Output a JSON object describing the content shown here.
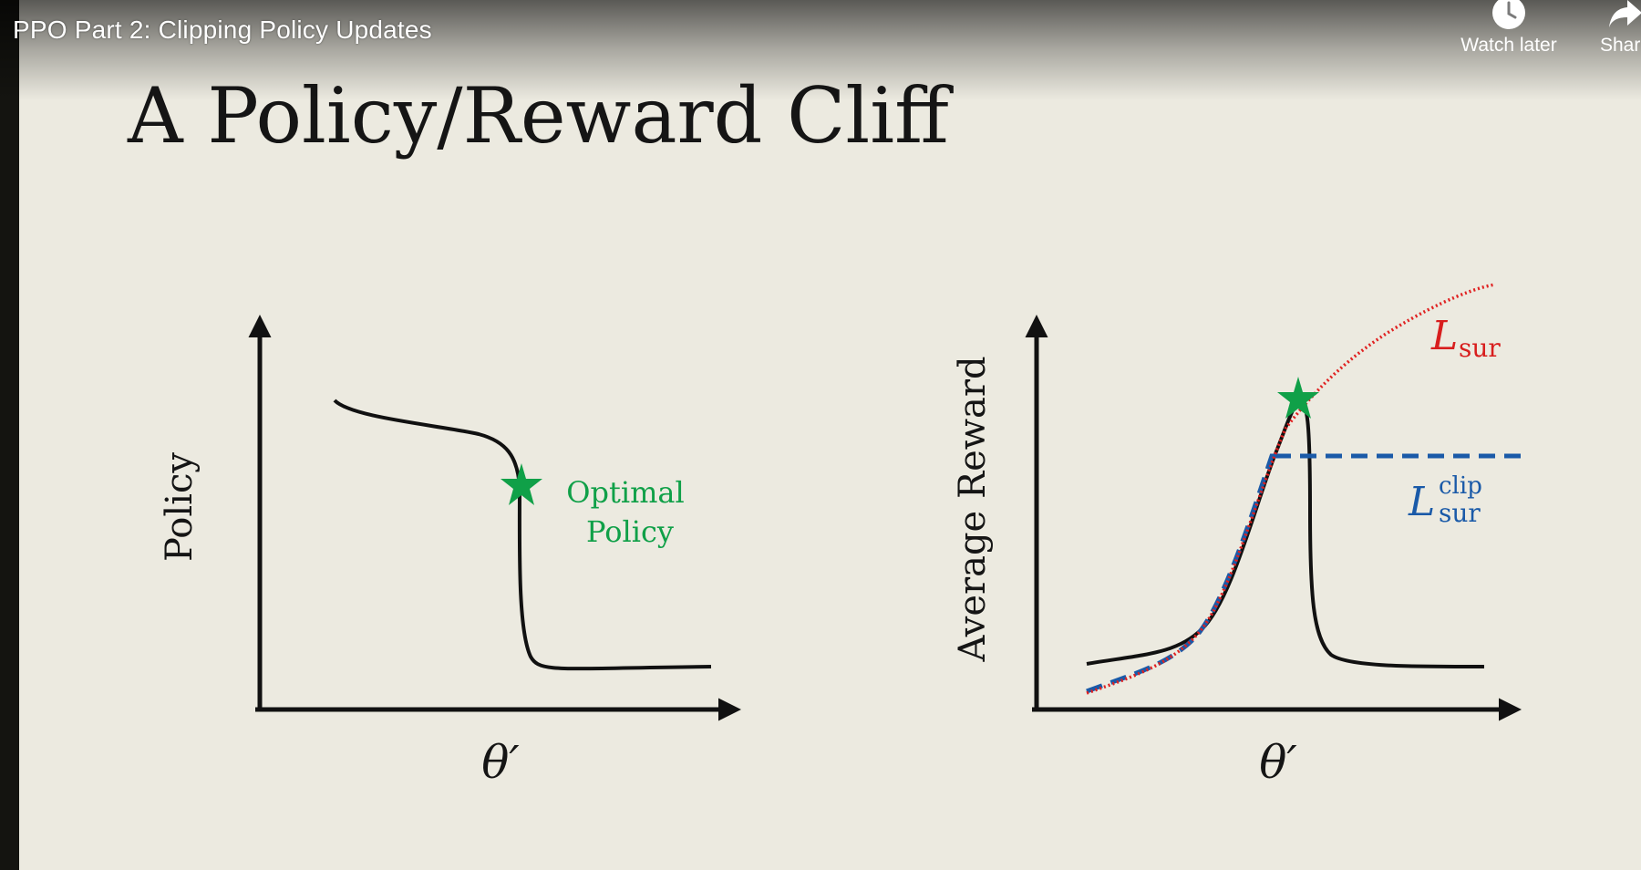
{
  "video": {
    "title": "PPO Part 2: Clipping Policy Updates",
    "actions": {
      "watch_later": {
        "label": "Watch later",
        "icon": "clock-icon"
      },
      "share": {
        "label": "Share",
        "icon": "share-arrow-icon"
      }
    }
  },
  "slide": {
    "heading": "A Policy/Reward Cliff",
    "left_plot": {
      "ylabel": "Policy",
      "xlabel": "θ′",
      "annotation_line1": "Optimal",
      "annotation_line2": "Policy"
    },
    "right_plot": {
      "ylabel": "Average Reward",
      "xlabel": "θ′",
      "lsur_main": "L",
      "lsur_sub": "sur",
      "lclip_main": "L",
      "lclip_sup": "clip",
      "lclip_sub": "sur"
    }
  },
  "colors": {
    "background": "#eceae0",
    "curve": "#111111",
    "star": "#10a048",
    "annotation": "#10a048",
    "l_sur": "#e02020",
    "l_clip": "#1a5aa8"
  }
}
